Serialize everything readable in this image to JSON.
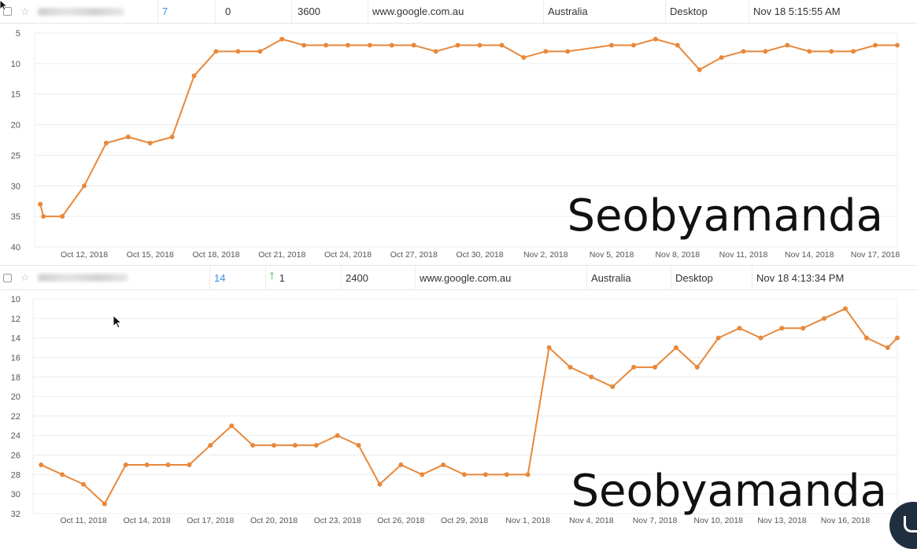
{
  "rows": [
    {
      "keyword": "",
      "rank": "7",
      "change": "0",
      "change_direction": "none",
      "volume": "3600",
      "engine": "www.google.com.au",
      "location": "Australia",
      "device": "Desktop",
      "updated": "Nov 18 5:15:55 AM"
    },
    {
      "keyword": "",
      "rank": "14",
      "change": "1",
      "change_direction": "up",
      "volume": "2400",
      "engine": "www.google.com.au",
      "location": "Australia",
      "device": "Desktop",
      "updated": "Nov 18 4:13:34 PM"
    }
  ],
  "colors": {
    "line": "#e8883a",
    "grid": "#ececec",
    "link": "#3a8ee6",
    "up": "#4caf50",
    "watermark": "#111111"
  },
  "chart_data": [
    {
      "type": "line",
      "watermark": "Seobyamanda",
      "y_reversed": true,
      "ylim": [
        5,
        40
      ],
      "y_ticks": [
        5,
        10,
        15,
        20,
        25,
        30,
        35,
        40
      ],
      "x_start": "2018-10-10",
      "x_end": "2018-11-17",
      "x_ticks": [
        {
          "date": "2018-10-12",
          "label": "Oct 12, 2018"
        },
        {
          "date": "2018-10-15",
          "label": "Oct 15, 2018"
        },
        {
          "date": "2018-10-18",
          "label": "Oct 18, 2018"
        },
        {
          "date": "2018-10-21",
          "label": "Oct 21, 2018"
        },
        {
          "date": "2018-10-24",
          "label": "Oct 24, 2018"
        },
        {
          "date": "2018-10-27",
          "label": "Oct 27, 2018"
        },
        {
          "date": "2018-10-30",
          "label": "Oct 30, 2018"
        },
        {
          "date": "2018-11-02",
          "label": "Nov 2, 2018"
        },
        {
          "date": "2018-11-05",
          "label": "Nov 5, 2018"
        },
        {
          "date": "2018-11-08",
          "label": "Nov 8, 2018"
        },
        {
          "date": "2018-11-11",
          "label": "Nov 11, 2018"
        },
        {
          "date": "2018-11-14",
          "label": "Nov 14, 2018"
        },
        {
          "date": "2018-11-17",
          "label": "Nov 17, 2018"
        }
      ],
      "series": [
        {
          "points": [
            {
              "x": "2018-10-10",
              "y": 33
            },
            {
              "x": "2018-10-10",
              "y": 35
            },
            {
              "x": "2018-10-11",
              "y": 35
            },
            {
              "x": "2018-10-12",
              "y": 30
            },
            {
              "x": "2018-10-13",
              "y": 23
            },
            {
              "x": "2018-10-14",
              "y": 22
            },
            {
              "x": "2018-10-15",
              "y": 23
            },
            {
              "x": "2018-10-16",
              "y": 22
            },
            {
              "x": "2018-10-17",
              "y": 12
            },
            {
              "x": "2018-10-18",
              "y": 8
            },
            {
              "x": "2018-10-19",
              "y": 8
            },
            {
              "x": "2018-10-20",
              "y": 8
            },
            {
              "x": "2018-10-21",
              "y": 6
            },
            {
              "x": "2018-10-22",
              "y": 7
            },
            {
              "x": "2018-10-23",
              "y": 7
            },
            {
              "x": "2018-10-24",
              "y": 7
            },
            {
              "x": "2018-10-25",
              "y": 7
            },
            {
              "x": "2018-10-26",
              "y": 7
            },
            {
              "x": "2018-10-27",
              "y": 7
            },
            {
              "x": "2018-10-28",
              "y": 8
            },
            {
              "x": "2018-10-29",
              "y": 7
            },
            {
              "x": "2018-10-30",
              "y": 7
            },
            {
              "x": "2018-10-31",
              "y": 7
            },
            {
              "x": "2018-11-01",
              "y": 9
            },
            {
              "x": "2018-11-02",
              "y": 8
            },
            {
              "x": "2018-11-03",
              "y": 8
            },
            {
              "x": "2018-11-05",
              "y": 7
            },
            {
              "x": "2018-11-06",
              "y": 7
            },
            {
              "x": "2018-11-07",
              "y": 6
            },
            {
              "x": "2018-11-08",
              "y": 7
            },
            {
              "x": "2018-11-09",
              "y": 11
            },
            {
              "x": "2018-11-10",
              "y": 9
            },
            {
              "x": "2018-11-11",
              "y": 8
            },
            {
              "x": "2018-11-12",
              "y": 8
            },
            {
              "x": "2018-11-13",
              "y": 7
            },
            {
              "x": "2018-11-14",
              "y": 8
            },
            {
              "x": "2018-11-15",
              "y": 8
            },
            {
              "x": "2018-11-16",
              "y": 8
            },
            {
              "x": "2018-11-17",
              "y": 7
            },
            {
              "x": "2018-11-18",
              "y": 7
            }
          ]
        }
      ]
    },
    {
      "type": "line",
      "watermark": "Seobyamanda",
      "y_reversed": true,
      "ylim": [
        10,
        32
      ],
      "y_ticks": [
        10,
        12,
        14,
        16,
        18,
        20,
        22,
        24,
        26,
        28,
        30,
        32
      ],
      "x_start": "2018-10-10",
      "x_end": "2018-11-17",
      "x_ticks": [
        {
          "date": "2018-10-11",
          "label": "Oct 11, 2018"
        },
        {
          "date": "2018-10-14",
          "label": "Oct 14, 2018"
        },
        {
          "date": "2018-10-17",
          "label": "Oct 17, 2018"
        },
        {
          "date": "2018-10-20",
          "label": "Oct 20, 2018"
        },
        {
          "date": "2018-10-23",
          "label": "Oct 23, 2018"
        },
        {
          "date": "2018-10-26",
          "label": "Oct 26, 2018"
        },
        {
          "date": "2018-10-29",
          "label": "Oct 29, 2018"
        },
        {
          "date": "2018-11-01",
          "label": "Nov 1, 2018"
        },
        {
          "date": "2018-11-04",
          "label": "Nov 4, 2018"
        },
        {
          "date": "2018-11-07",
          "label": "Nov 7, 2018"
        },
        {
          "date": "2018-11-10",
          "label": "Nov 10, 2018"
        },
        {
          "date": "2018-11-13",
          "label": "Nov 13, 2018"
        },
        {
          "date": "2018-11-16",
          "label": "Nov 16, 2018"
        }
      ],
      "series": [
        {
          "points": [
            {
              "x": "2018-10-09",
              "y": 27
            },
            {
              "x": "2018-10-10",
              "y": 28
            },
            {
              "x": "2018-10-11",
              "y": 29
            },
            {
              "x": "2018-10-12",
              "y": 31
            },
            {
              "x": "2018-10-13",
              "y": 27
            },
            {
              "x": "2018-10-14",
              "y": 27
            },
            {
              "x": "2018-10-15",
              "y": 27
            },
            {
              "x": "2018-10-16",
              "y": 27
            },
            {
              "x": "2018-10-17",
              "y": 25
            },
            {
              "x": "2018-10-18",
              "y": 23
            },
            {
              "x": "2018-10-19",
              "y": 25
            },
            {
              "x": "2018-10-20",
              "y": 25
            },
            {
              "x": "2018-10-21",
              "y": 25
            },
            {
              "x": "2018-10-22",
              "y": 25
            },
            {
              "x": "2018-10-23",
              "y": 24
            },
            {
              "x": "2018-10-24",
              "y": 25
            },
            {
              "x": "2018-10-25",
              "y": 29
            },
            {
              "x": "2018-10-26",
              "y": 27
            },
            {
              "x": "2018-10-27",
              "y": 28
            },
            {
              "x": "2018-10-28",
              "y": 27
            },
            {
              "x": "2018-10-29",
              "y": 28
            },
            {
              "x": "2018-10-30",
              "y": 28
            },
            {
              "x": "2018-10-31",
              "y": 28
            },
            {
              "x": "2018-11-01",
              "y": 28
            },
            {
              "x": "2018-11-02",
              "y": 15
            },
            {
              "x": "2018-11-03",
              "y": 17
            },
            {
              "x": "2018-11-04",
              "y": 18
            },
            {
              "x": "2018-11-05",
              "y": 19
            },
            {
              "x": "2018-11-06",
              "y": 17
            },
            {
              "x": "2018-11-07",
              "y": 17
            },
            {
              "x": "2018-11-08",
              "y": 15
            },
            {
              "x": "2018-11-09",
              "y": 17
            },
            {
              "x": "2018-11-10",
              "y": 14
            },
            {
              "x": "2018-11-11",
              "y": 13
            },
            {
              "x": "2018-11-12",
              "y": 14
            },
            {
              "x": "2018-11-13",
              "y": 13
            },
            {
              "x": "2018-11-14",
              "y": 13
            },
            {
              "x": "2018-11-15",
              "y": 12
            },
            {
              "x": "2018-11-16",
              "y": 11
            },
            {
              "x": "2018-11-17",
              "y": 14
            },
            {
              "x": "2018-11-18",
              "y": 15
            },
            {
              "x": "2018-11-19",
              "y": 14
            }
          ]
        }
      ]
    }
  ]
}
